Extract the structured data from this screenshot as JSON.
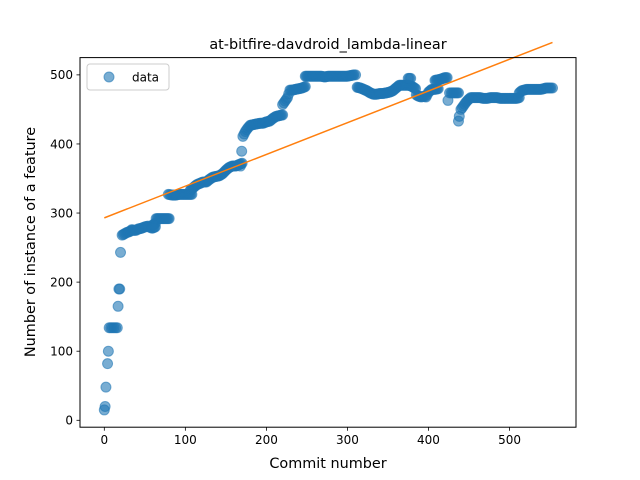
{
  "chart_data": {
    "type": "scatter",
    "title": "at-bitfire-davdroid_lambda-linear",
    "xlabel": "Commit number",
    "ylabel": "Number of instance of a feature",
    "xlim": [
      -30,
      582
    ],
    "ylim": [
      -10,
      525
    ],
    "xticks": [
      0,
      100,
      200,
      300,
      400,
      500
    ],
    "yticks": [
      0,
      100,
      200,
      300,
      400,
      500
    ],
    "grid": false,
    "legend": {
      "placement": "top-left",
      "entries": [
        "data"
      ]
    },
    "series": [
      {
        "name": "data",
        "kind": "scatter",
        "color": "#1f77b4",
        "segments": [
          [
            [
              0,
              15
            ],
            [
              1,
              20
            ],
            [
              2,
              48
            ],
            [
              4,
              82
            ],
            [
              5,
              100
            ],
            [
              6,
              134
            ],
            [
              8,
              134
            ],
            [
              10,
              134
            ],
            [
              12,
              134
            ],
            [
              14,
              134
            ],
            [
              16,
              134
            ],
            [
              17,
              165
            ],
            [
              18,
              190
            ],
            [
              19,
              190
            ],
            [
              20,
              243
            ],
            [
              22,
              268
            ],
            [
              25,
              270
            ],
            [
              28,
              272
            ],
            [
              31,
              273
            ],
            [
              34,
              276
            ]
          ],
          [
            [
              35,
              275
            ],
            [
              39,
              275
            ],
            [
              42,
              277
            ],
            [
              46,
              278
            ],
            [
              50,
              280
            ],
            [
              54,
              281
            ],
            [
              57,
              279
            ],
            [
              60,
              283
            ],
            [
              63,
              285
            ]
          ],
          [
            [
              59,
              278
            ],
            [
              63,
              280
            ]
          ],
          [
            [
              64,
              292
            ],
            [
              68,
              292
            ],
            [
              72,
              292
            ],
            [
              76,
              292
            ],
            [
              80,
              292
            ]
          ],
          [
            [
              79,
              327
            ],
            [
              84,
              326
            ],
            [
              88,
              326
            ],
            [
              92,
              327
            ],
            [
              96,
              327
            ],
            [
              100,
              327
            ],
            [
              104,
              327
            ],
            [
              108,
              327
            ]
          ],
          [
            [
              106,
              333
            ],
            [
              110,
              337
            ],
            [
              114,
              341
            ],
            [
              118,
              343
            ],
            [
              122,
              345
            ],
            [
              126,
              345
            ],
            [
              130,
              349
            ],
            [
              134,
              352
            ],
            [
              138,
              353
            ],
            [
              142,
              354
            ],
            [
              146,
              357
            ],
            [
              150,
              362
            ],
            [
              154,
              366
            ],
            [
              158,
              368
            ],
            [
              162,
              368
            ],
            [
              166,
              370
            ],
            [
              170,
              372
            ]
          ],
          [
            [
              168,
              368
            ],
            [
              171,
              411
            ],
            [
              174,
              418
            ],
            [
              177,
              423
            ],
            [
              180,
              427
            ],
            [
              184,
              428
            ],
            [
              188,
              429
            ],
            [
              192,
              430
            ],
            [
              196,
              430
            ],
            [
              200,
              432
            ],
            [
              204,
              433
            ],
            [
              208,
              437
            ],
            [
              212,
              440
            ],
            [
              216,
              441
            ],
            [
              220,
              442
            ]
          ],
          [
            [
              220,
              457
            ],
            [
              223,
              462
            ],
            [
              226,
              467
            ],
            [
              229,
              478
            ],
            [
              232,
              478
            ],
            [
              236,
              479
            ],
            [
              240,
              480
            ],
            [
              244,
              481
            ],
            [
              248,
              483
            ]
          ],
          [
            [
              248,
              498
            ],
            [
              252,
              498
            ],
            [
              256,
              498
            ],
            [
              260,
              498
            ],
            [
              264,
              498
            ],
            [
              268,
              498
            ],
            [
              272,
              497
            ],
            [
              276,
              498
            ],
            [
              280,
              498
            ],
            [
              284,
              498
            ],
            [
              288,
              498
            ],
            [
              292,
              498
            ],
            [
              296,
              498
            ],
            [
              300,
              498
            ],
            [
              304,
              499
            ],
            [
              308,
              500
            ],
            [
              310,
              500
            ]
          ],
          [
            [
              312,
              482
            ],
            [
              316,
              481
            ],
            [
              320,
              479
            ],
            [
              324,
              477
            ],
            [
              328,
              474
            ],
            [
              332,
              472
            ],
            [
              336,
              472
            ],
            [
              340,
              473
            ],
            [
              344,
              473
            ],
            [
              348,
              474
            ],
            [
              352,
              475
            ],
            [
              356,
              477
            ],
            [
              360,
              481
            ],
            [
              364,
              485
            ],
            [
              368,
              485
            ],
            [
              372,
              485
            ],
            [
              376,
              485
            ],
            [
              380,
              483
            ],
            [
              384,
              480
            ]
          ],
          [
            [
              375,
              495
            ],
            [
              378,
              495
            ]
          ],
          [
            [
              385,
              471
            ],
            [
              388,
              469
            ],
            [
              391,
              468
            ],
            [
              394,
              469
            ],
            [
              397,
              468
            ],
            [
              400,
              475
            ],
            [
              404,
              479
            ],
            [
              408,
              479
            ],
            [
              412,
              480
            ]
          ],
          [
            [
              408,
              492
            ],
            [
              412,
              493
            ],
            [
              416,
              494
            ],
            [
              420,
              496
            ],
            [
              423,
              496
            ]
          ],
          [
            [
              424,
              463
            ],
            [
              426,
              474
            ],
            [
              428,
              474
            ],
            [
              431,
              474
            ],
            [
              434,
              474
            ],
            [
              437,
              474
            ],
            [
              437,
              433
            ],
            [
              438,
              440
            ],
            [
              440,
              450
            ],
            [
              443,
              455
            ],
            [
              446,
              460
            ],
            [
              449,
              464
            ],
            [
              452,
              467
            ],
            [
              455,
              467
            ],
            [
              458,
              467
            ],
            [
              461,
              467
            ],
            [
              464,
              467
            ],
            [
              467,
              466
            ],
            [
              470,
              466
            ],
            [
              473,
              466
            ],
            [
              476,
              467
            ],
            [
              479,
              467
            ],
            [
              482,
              467
            ],
            [
              485,
              467
            ],
            [
              488,
              466
            ],
            [
              491,
              466
            ],
            [
              494,
              466
            ],
            [
              497,
              466
            ],
            [
              500,
              466
            ],
            [
              503,
              466
            ],
            [
              506,
              466
            ],
            [
              509,
              466
            ],
            [
              512,
              467
            ]
          ],
          [
            [
              512,
              474
            ],
            [
              515,
              477
            ],
            [
              518,
              478
            ],
            [
              521,
              479
            ],
            [
              524,
              479
            ],
            [
              527,
              479
            ],
            [
              530,
              479
            ],
            [
              533,
              479
            ],
            [
              536,
              479
            ],
            [
              539,
              479
            ],
            [
              542,
              480
            ],
            [
              545,
              481
            ],
            [
              548,
              481
            ],
            [
              551,
              481
            ],
            [
              553,
              481
            ]
          ]
        ]
      },
      {
        "name": "",
        "kind": "line",
        "color": "#ff7f0e",
        "points": [
          [
            0,
            293
          ],
          [
            553,
            547
          ]
        ]
      }
    ]
  }
}
